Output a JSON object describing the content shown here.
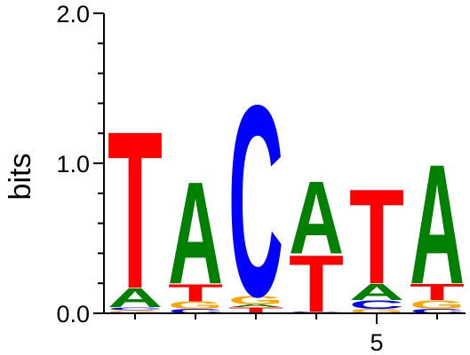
{
  "colors": {
    "A": "#008000",
    "C": "#0000ff",
    "G": "#ffa500",
    "T": "#ff0000",
    "axis": "#000000"
  },
  "chart_data": {
    "type": "sequence_logo",
    "ylabel": "bits",
    "ylim": [
      0,
      2.0
    ],
    "y_ticks": [
      {
        "value": 0.0,
        "label": "0.0"
      },
      {
        "value": 1.0,
        "label": "1.0"
      },
      {
        "value": 2.0,
        "label": "2.0"
      }
    ],
    "y_minor_step": 0.2,
    "x_ticks": [
      {
        "position": 5,
        "label": "5"
      }
    ],
    "positions": [
      {
        "position": 1,
        "stack": [
          {
            "base": "G",
            "height": 0.02
          },
          {
            "base": "C",
            "height": 0.02
          },
          {
            "base": "A",
            "height": 0.13
          },
          {
            "base": "T",
            "height": 1.08
          }
        ]
      },
      {
        "position": 2,
        "stack": [
          {
            "base": "C",
            "height": 0.03
          },
          {
            "base": "G",
            "height": 0.05
          },
          {
            "base": "T",
            "height": 0.12
          },
          {
            "base": "A",
            "height": 0.7
          }
        ]
      },
      {
        "position": 3,
        "stack": [
          {
            "base": "T",
            "height": 0.04
          },
          {
            "base": "A",
            "height": 0.02
          },
          {
            "base": "G",
            "height": 0.06
          },
          {
            "base": "C",
            "height": 1.31
          }
        ]
      },
      {
        "position": 4,
        "stack": [
          {
            "base": "C",
            "height": 0.01
          },
          {
            "base": "T",
            "height": 0.39
          },
          {
            "base": "A",
            "height": 0.5
          }
        ]
      },
      {
        "position": 5,
        "stack": [
          {
            "base": "G",
            "height": 0.03
          },
          {
            "base": "C",
            "height": 0.06
          },
          {
            "base": "A",
            "height": 0.11
          },
          {
            "base": "T",
            "height": 0.65
          }
        ]
      },
      {
        "position": 6,
        "stack": [
          {
            "base": "C",
            "height": 0.03
          },
          {
            "base": "G",
            "height": 0.06
          },
          {
            "base": "T",
            "height": 0.11
          },
          {
            "base": "A",
            "height": 0.82
          }
        ]
      }
    ]
  }
}
